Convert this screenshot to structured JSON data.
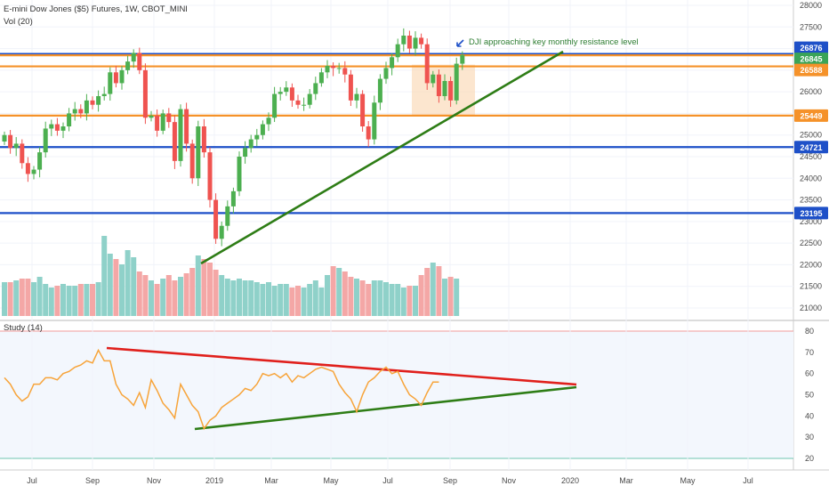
{
  "header": {
    "title": "E-mini Dow Jones ($5) Futures, 1W, CBOT_MINI",
    "volume_label": "Vol (20)",
    "study_label": "Study (14)"
  },
  "colors": {
    "up": "#26a69a",
    "up_body": "#4caf50",
    "down": "#ef5350",
    "vol_up": "#8fd1c9",
    "vol_down": "#f4a7a6",
    "blue_line": "#1e50c8",
    "orange_line": "#f5922a",
    "trend_green": "#2e7d16",
    "trend_red": "#e0201c",
    "study_line": "#f7a43a",
    "zone_fill": "#fbd9b6"
  },
  "annotation": "DJI approaching key monthly resistance level",
  "chart_data": [
    {
      "type": "candlestick",
      "name": "price",
      "x_ticks": [
        "Jul",
        "Sep",
        "Nov",
        "2019",
        "Mar",
        "May",
        "Jul",
        "Sep",
        "Nov",
        "2020",
        "Mar",
        "May",
        "Jul"
      ],
      "y_ticks": [
        21000,
        21500,
        22000,
        22500,
        23000,
        23500,
        24000,
        24500,
        25000,
        25500,
        26000,
        26500,
        27000,
        27500,
        28000
      ],
      "ylim": [
        20900,
        28050
      ],
      "closes": [
        25000,
        24700,
        24800,
        24350,
        24100,
        24200,
        24600,
        25150,
        25250,
        25100,
        25200,
        25500,
        25600,
        25500,
        25800,
        25700,
        25900,
        25950,
        26450,
        26200,
        26500,
        26700,
        26900,
        26500,
        25400,
        25450,
        25100,
        25500,
        25300,
        24400,
        25600,
        24800,
        24000,
        25200,
        24600,
        23500,
        22600,
        22900,
        23350,
        23700,
        24500,
        24700,
        24900,
        25000,
        25250,
        25400,
        25950,
        26000,
        26100,
        25800,
        25700,
        25700,
        25950,
        26200,
        26450,
        26600,
        26550,
        26550,
        26400,
        25800,
        25950,
        25200,
        24900,
        25750,
        26300,
        26550,
        26800,
        27100,
        27300,
        27000,
        27250,
        27100,
        26200,
        26400,
        25900,
        26250,
        25800,
        26650,
        26850
      ]
    },
    {
      "type": "bar",
      "name": "volume"
    },
    {
      "type": "line",
      "name": "study",
      "y_ticks": [
        20,
        30,
        40,
        50,
        60,
        70,
        80
      ],
      "ylim": [
        17,
        83
      ],
      "values": [
        58,
        55,
        50,
        47,
        49,
        55,
        55,
        58,
        58,
        57,
        60,
        61,
        63,
        64,
        66,
        65,
        71,
        66,
        66,
        55,
        50,
        48,
        45,
        51,
        44,
        57,
        52,
        46,
        43,
        39,
        55,
        50,
        45,
        42,
        34,
        38,
        40,
        44,
        46,
        48,
        50,
        53,
        52,
        55,
        60,
        59,
        60,
        58,
        60,
        56,
        59,
        58,
        60,
        62,
        63,
        62,
        61,
        55,
        51,
        48,
        42,
        50,
        56,
        58,
        61,
        63,
        60,
        61,
        55,
        50,
        48,
        45,
        51,
        56,
        56
      ]
    }
  ],
  "levels": {
    "blue": [
      26876,
      24721,
      23195
    ],
    "orange": [
      26845,
      26588,
      25449
    ],
    "labels": [
      "26876",
      "26845",
      "26588",
      "25449",
      "24721",
      "23195"
    ]
  },
  "study_levels": [
    80,
    20
  ]
}
